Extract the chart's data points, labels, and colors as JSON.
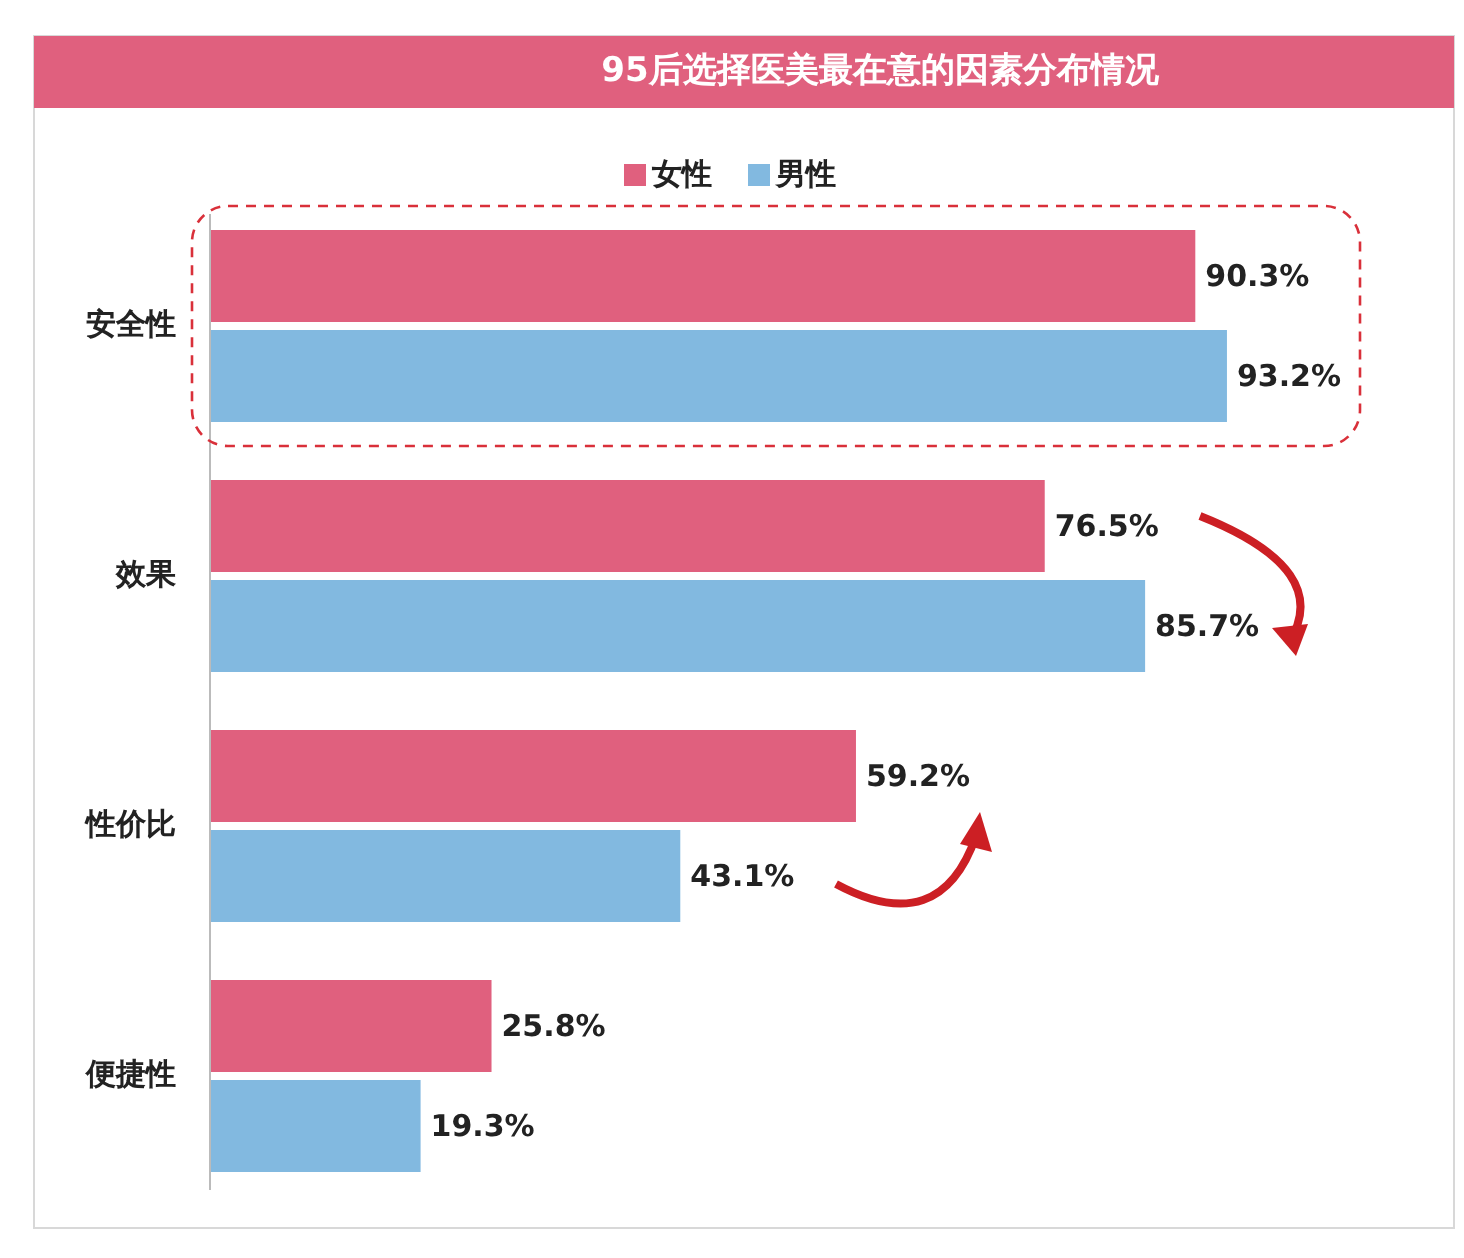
{
  "chart_data": {
    "type": "bar",
    "orientation": "horizontal",
    "title": "95后选择医美最在意的因素分布情况",
    "categories": [
      "安全性",
      "效果",
      "性价比",
      "便捷性"
    ],
    "series": [
      {
        "name": "女性",
        "color": "#e0607e",
        "values": [
          90.3,
          76.5,
          59.2,
          25.8
        ],
        "value_labels": [
          "90.3%",
          "76.5%",
          "59.2%",
          "25.8%"
        ]
      },
      {
        "name": "男性",
        "color": "#82b9e0",
        "values": [
          93.2,
          85.7,
          43.1,
          19.3
        ],
        "value_labels": [
          "93.2%",
          "85.7%",
          "43.1%",
          "19.3%"
        ]
      }
    ],
    "legend": "top",
    "grid": false
  }
}
